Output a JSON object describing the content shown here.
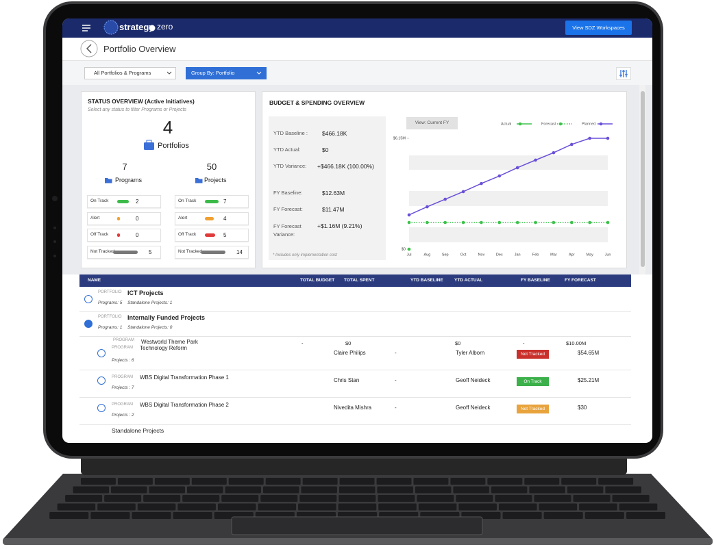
{
  "header": {
    "brand_left": "strategy",
    "brand_right": "zero",
    "button": "View SDZ Workspaces"
  },
  "page_title": "Portfolio Overview",
  "filters": [
    "All Portfolios & Programs",
    "Group By: Portfolio"
  ],
  "status_overview": {
    "title": "STATUS OVERVIEW (Active Initiatives)",
    "subtitle": "Select any status to filter Programs or Projects",
    "portfolios": {
      "count": 4,
      "label": "Portfolios"
    },
    "groups": [
      {
        "count": 7,
        "label": "Programs",
        "statuses": [
          {
            "label": "On Track",
            "count": 2
          },
          {
            "label": "Alert",
            "count": 0
          },
          {
            "label": "Off Track",
            "count": 0
          },
          {
            "label": "Not Tracked",
            "count": 5
          }
        ]
      },
      {
        "count": 50,
        "label": "Projects",
        "statuses": [
          {
            "label": "On Track",
            "count": 7
          },
          {
            "label": "Alert",
            "count": 4
          },
          {
            "label": "Off Track",
            "count": 5
          },
          {
            "label": "Not Tracked",
            "count": 14
          }
        ]
      }
    ]
  },
  "budget_overview": {
    "title": "BUDGET & SPENDING OVERVIEW",
    "rows": [
      {
        "label": "YTD Baseline :",
        "value": "$466.18K"
      },
      {
        "label": "YTD Actual:",
        "value": "$0"
      },
      {
        "label": "YTD Variance:",
        "value": "+$466.18K (100.00%)"
      },
      {
        "label": "FY Baseline:",
        "value": "$12.63M"
      },
      {
        "label": "FY Forecast:",
        "value": "$11.47M"
      },
      {
        "label": "FY Forecast Variance:",
        "value": "+$1.16M (9.21%)"
      }
    ],
    "note": "* Includes only implementation cost",
    "view_button": "View: Current FY"
  },
  "chart_data": {
    "type": "line",
    "categories": [
      "Jul",
      "Aug",
      "Sep",
      "Oct",
      "Nov",
      "Dec",
      "Jan",
      "Feb",
      "Mar",
      "Apr",
      "May",
      "Jun"
    ],
    "series": [
      {
        "name": "Actual",
        "color": "#3cc24a",
        "line_style": "solid",
        "values": [
          0,
          null,
          null,
          null,
          null,
          null,
          null,
          null,
          null,
          null,
          null,
          null
        ]
      },
      {
        "name": "Forecast",
        "color": "#3cc24a",
        "line_style": "dotted",
        "values": [
          1.48,
          1.48,
          1.48,
          1.48,
          1.48,
          1.48,
          1.48,
          1.48,
          1.48,
          1.48,
          1.48,
          1.48
        ]
      },
      {
        "name": "Planned",
        "color": "#6a4fd8",
        "line_style": "solid",
        "values": [
          1.9,
          2.35,
          2.77,
          3.19,
          3.64,
          4.06,
          4.52,
          4.94,
          5.35,
          5.81,
          6.15,
          6.15
        ]
      }
    ],
    "ylim": [
      0,
      6.15
    ],
    "yticks": [
      {
        "value": 0,
        "label": "$0"
      },
      {
        "value": 6.15,
        "label": "$6.15M"
      }
    ],
    "legend": "top-right"
  },
  "table": {
    "columns": [
      "NAME",
      "TOTAL BUDGET",
      "TOTAL SPENT",
      "YTD BASELINE",
      "YTD ACTUAL",
      "FY BASELINE",
      "FY FORECAST"
    ],
    "portfolios": [
      {
        "tag": "PORTFOLIO",
        "name": "ICT Projects",
        "programs": "Programs: 5",
        "standalone": "Standalone Projects: 1"
      },
      {
        "tag": "PORTFOLIO",
        "name": "Internally Funded Projects",
        "programs": "Programs: 1",
        "standalone": "Standalone Projects: 0"
      }
    ],
    "hidden_row": {
      "tag": "PROGRAM",
      "name": "Westworld Theme Park",
      "cells": [
        "-",
        "$0",
        "$0",
        "-",
        "$10.00M"
      ]
    },
    "programs": [
      {
        "tag": "PROGRAM",
        "name": "Technology Reform",
        "projects": "Projects : 6",
        "owner": "Claire Philips",
        "ytd_baseline": "-",
        "manager": "Tyler Alborn",
        "status": "Not Tracked",
        "fy_forecast": "$54.65M"
      },
      {
        "tag": "PROGRAM",
        "name": "WBS Digital Transformation Phase 1",
        "projects": "Projects : 7",
        "owner": "Chris Stan",
        "ytd_baseline": "-",
        "manager": "Geoff Neideck",
        "status": "On Track",
        "fy_forecast": "$25.21M"
      },
      {
        "tag": "PROGRAM",
        "name": "WBS Digital Transformation Phase 2",
        "projects": "Projects : 2",
        "owner": "Nivedita Mishra",
        "ytd_baseline": "-",
        "manager": "Geoff Neideck",
        "status": "Not Tracked",
        "fy_forecast": "$30"
      }
    ],
    "standalone": "Standalone Projects"
  }
}
